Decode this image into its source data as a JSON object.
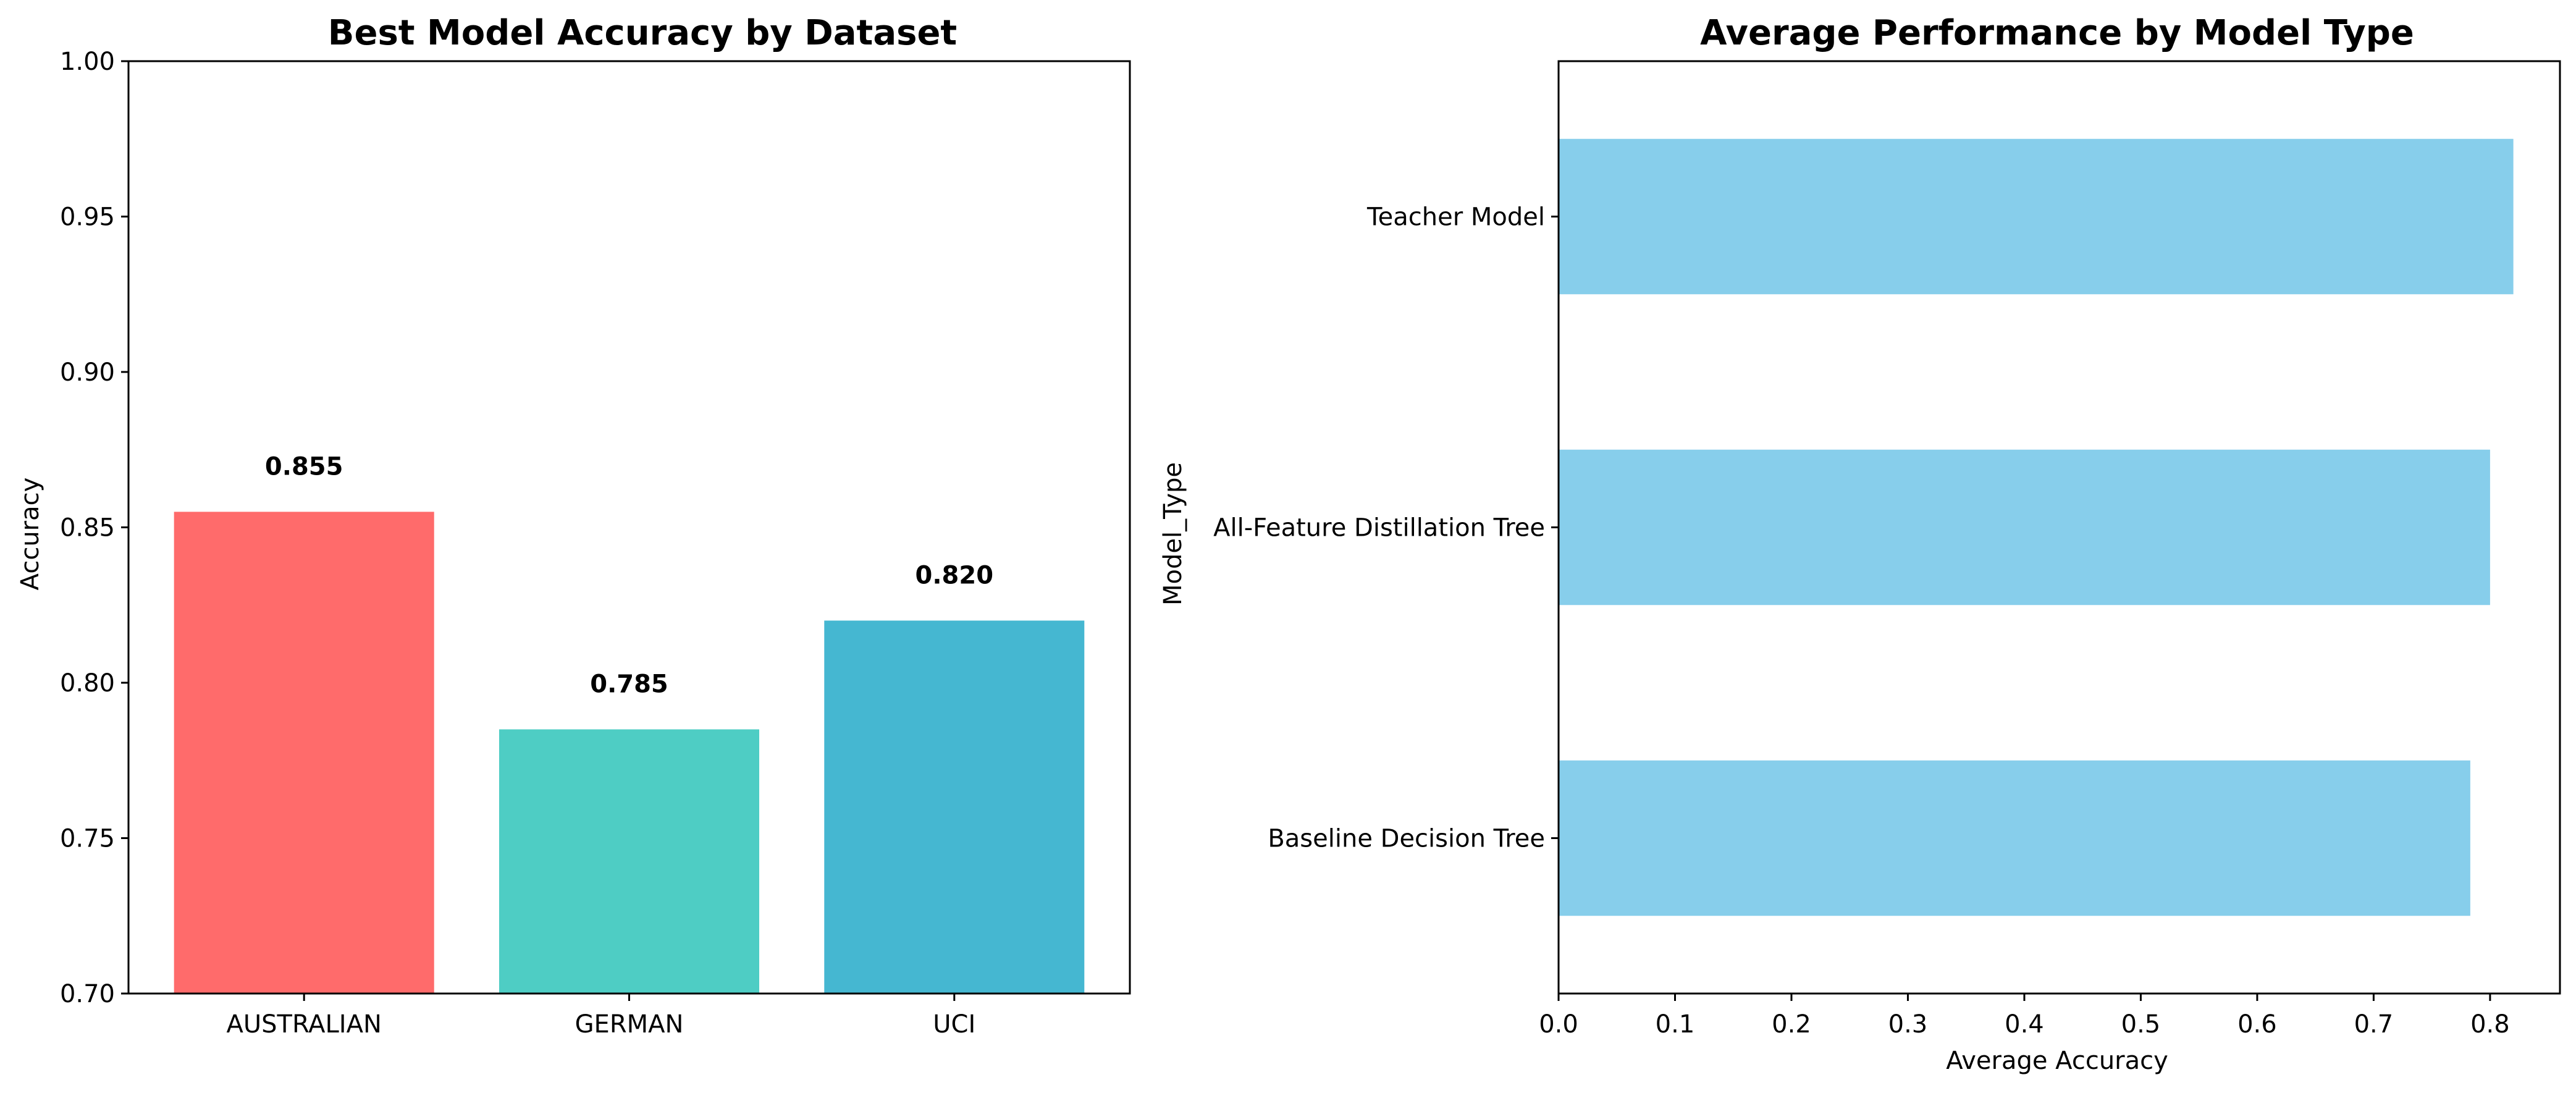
{
  "chart_data": [
    {
      "type": "bar",
      "title": "Best Model Accuracy by Dataset",
      "xlabel": "",
      "ylabel": "Accuracy",
      "categories": [
        "AUSTRALIAN",
        "GERMAN",
        "UCI"
      ],
      "values": [
        0.855,
        0.785,
        0.82
      ],
      "value_labels": [
        "0.855",
        "0.785",
        "0.820"
      ],
      "colors": [
        "#ff6b6b",
        "#4ecdc4",
        "#45b7d1"
      ],
      "ylim": [
        0.7,
        1.0
      ],
      "yticks": [
        "0.70",
        "0.75",
        "0.80",
        "0.85",
        "0.90",
        "0.95",
        "1.00"
      ],
      "grid": false
    },
    {
      "type": "bar",
      "orientation": "horizontal",
      "title": "Average Performance by Model Type",
      "xlabel": "Average Accuracy",
      "ylabel": "Model_Type",
      "categories": [
        "Baseline Decision Tree",
        "All-Feature Distillation Tree",
        "Teacher Model"
      ],
      "values": [
        0.783,
        0.8,
        0.82
      ],
      "color": "#87ceeb",
      "xlim": [
        0.0,
        0.86
      ],
      "xticks": [
        "0.0",
        "0.1",
        "0.2",
        "0.3",
        "0.4",
        "0.5",
        "0.6",
        "0.7",
        "0.8"
      ],
      "grid": false
    }
  ]
}
